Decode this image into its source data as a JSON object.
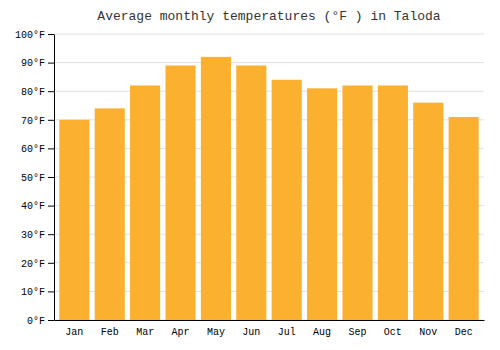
{
  "chart_data": {
    "type": "bar",
    "title": "Average monthly temperatures (°F ) in Taloda",
    "categories": [
      "Jan",
      "Feb",
      "Mar",
      "Apr",
      "May",
      "Jun",
      "Jul",
      "Aug",
      "Sep",
      "Oct",
      "Nov",
      "Dec"
    ],
    "values": [
      70,
      74,
      82,
      89,
      92,
      89,
      84,
      81,
      82,
      82,
      76,
      71
    ],
    "color": "#FBB030",
    "ylim": [
      0,
      100
    ],
    "yticks": [
      {
        "value": 0,
        "label": "0°F"
      },
      {
        "value": 10,
        "label": "10°F"
      },
      {
        "value": 20,
        "label": "20°F"
      },
      {
        "value": 30,
        "label": "30°F"
      },
      {
        "value": 40,
        "label": "40°F"
      },
      {
        "value": 50,
        "label": "50°F"
      },
      {
        "value": 60,
        "label": "60°F"
      },
      {
        "value": 70,
        "label": "70°F"
      },
      {
        "value": 80,
        "label": "80°F"
      },
      {
        "value": 90,
        "label": "90°F"
      },
      {
        "value": 100,
        "label": "100°F"
      }
    ],
    "grid": true
  }
}
